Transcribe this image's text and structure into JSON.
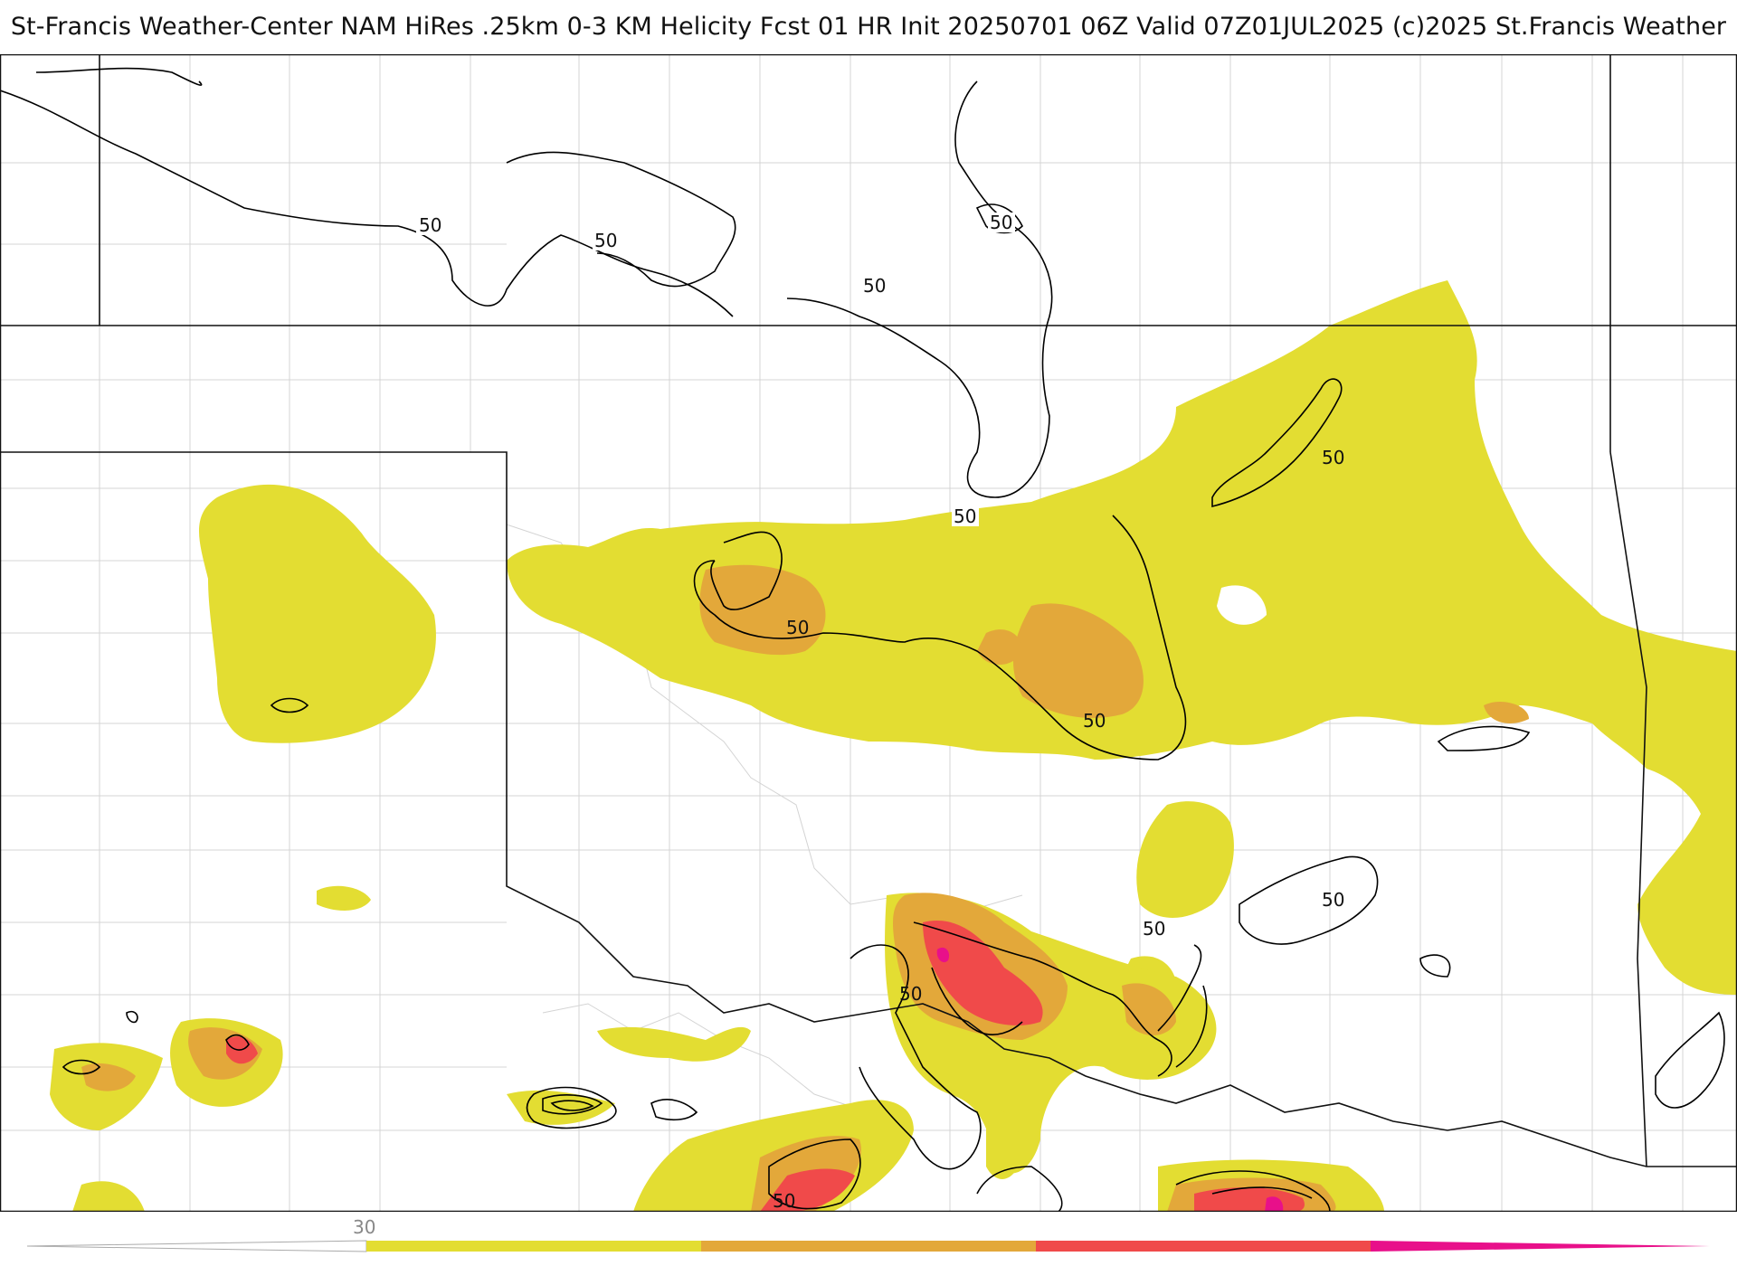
{
  "title": "St-Francis Weather-Center NAM HiRes .25km 0-3 KM Helicity Fcst 01 HR Init 20250701 06Z  Valid 07Z01JUL2025     (c)2025 St.Francis Weather",
  "contour_label": "50",
  "colorbar": {
    "tick_label": "30",
    "colors": [
      "#e3dd32",
      "#e3a83a",
      "#f04a4a",
      "#e8108a"
    ]
  },
  "colors": {
    "level1": "#e3dd32",
    "level2": "#e3a83a",
    "level3": "#f04a4a",
    "level4": "#e8108a",
    "county_lines": "#cfcfcf",
    "state_lines": "#111111",
    "contour": "#000000"
  }
}
